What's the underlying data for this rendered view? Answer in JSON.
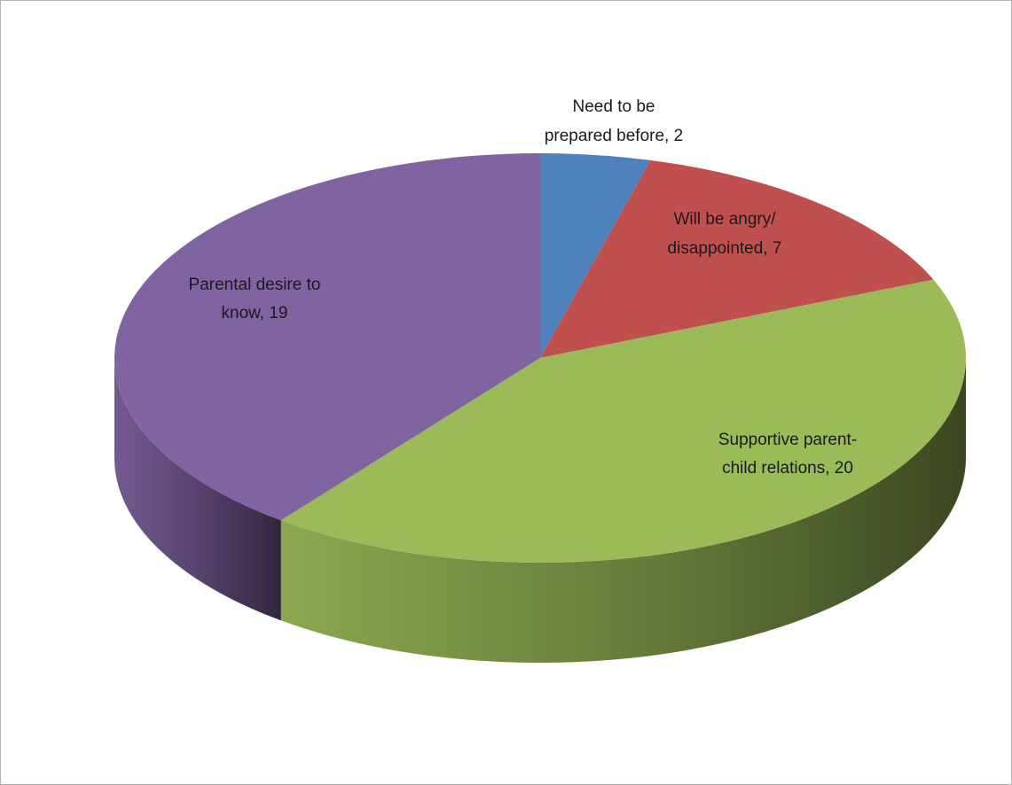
{
  "chart_data": {
    "type": "pie",
    "title": "",
    "slices": [
      {
        "label_lines": [
          "Need to be",
          "prepared before, 2"
        ],
        "value": 2,
        "color": "#4f81bd"
      },
      {
        "label_lines": [
          "Will be angry/",
          "disappointed, 7"
        ],
        "value": 7,
        "color": "#c0504d"
      },
      {
        "label_lines": [
          "Supportive parent-",
          "child relations, 20"
        ],
        "value": 20,
        "color": "#9bbb59"
      },
      {
        "label_lines": [
          "Parental desire to",
          "know, 19"
        ],
        "value": 19,
        "color": "#8064a2"
      }
    ]
  }
}
